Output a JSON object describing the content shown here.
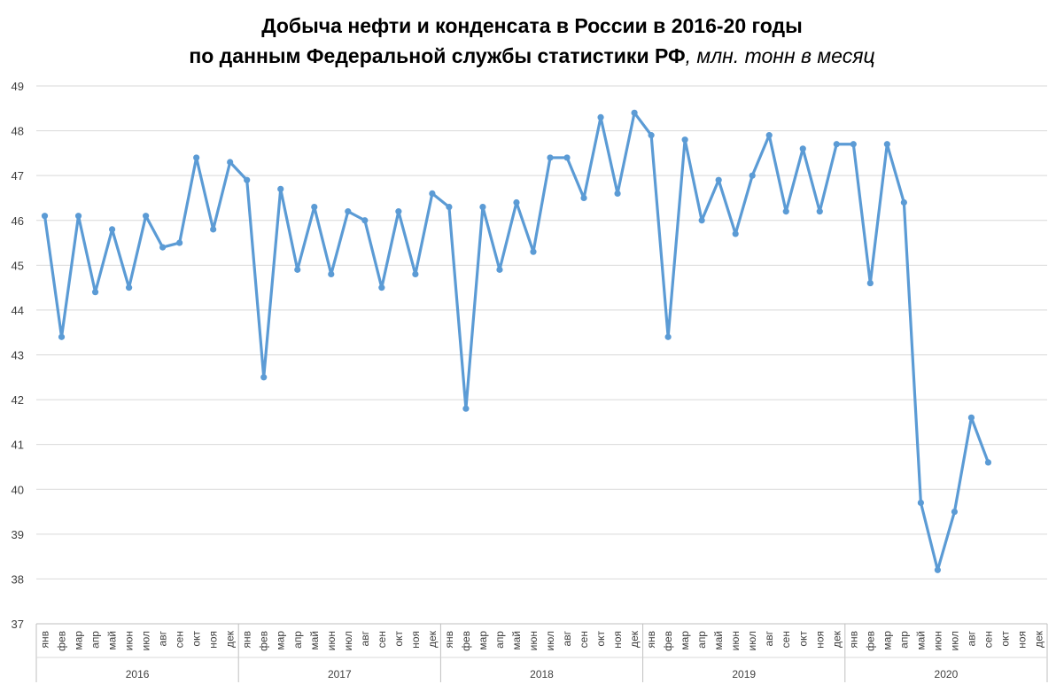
{
  "chart_data": {
    "type": "line",
    "title_line1": "Добыча нефти и конденсата в России в 2016-20 годы",
    "title_line2": "по данным Федеральной службы статистики РФ",
    "title_units": ", млн. тонн в месяц",
    "ylim": [
      37,
      49
    ],
    "yticks": [
      37,
      38,
      39,
      40,
      41,
      42,
      43,
      44,
      45,
      46,
      47,
      48,
      49
    ],
    "grid": true,
    "line_color": "#5B9BD5",
    "months": [
      "янв",
      "фев",
      "мар",
      "апр",
      "май",
      "июн",
      "июл",
      "авг",
      "сен",
      "окт",
      "ноя",
      "дек"
    ],
    "groups": [
      {
        "year": "2016",
        "values": [
          46.1,
          43.4,
          46.1,
          44.4,
          45.8,
          44.5,
          46.1,
          45.4,
          45.5,
          47.4,
          45.8,
          47.3
        ]
      },
      {
        "year": "2017",
        "values": [
          46.9,
          42.5,
          46.7,
          44.9,
          46.3,
          44.8,
          46.2,
          46.0,
          44.5,
          46.2,
          44.8,
          46.6
        ]
      },
      {
        "year": "2018",
        "values": [
          46.3,
          41.8,
          46.3,
          44.9,
          46.4,
          45.3,
          47.4,
          47.4,
          46.5,
          48.3,
          46.6,
          48.4
        ]
      },
      {
        "year": "2019",
        "values": [
          47.9,
          43.4,
          47.8,
          46.0,
          46.9,
          45.7,
          47.0,
          47.9,
          46.2,
          47.6,
          46.2,
          47.7
        ]
      },
      {
        "year": "2020",
        "values": [
          47.7,
          44.6,
          47.7,
          46.4,
          39.7,
          38.2,
          39.5,
          41.6,
          40.6
        ]
      }
    ]
  }
}
